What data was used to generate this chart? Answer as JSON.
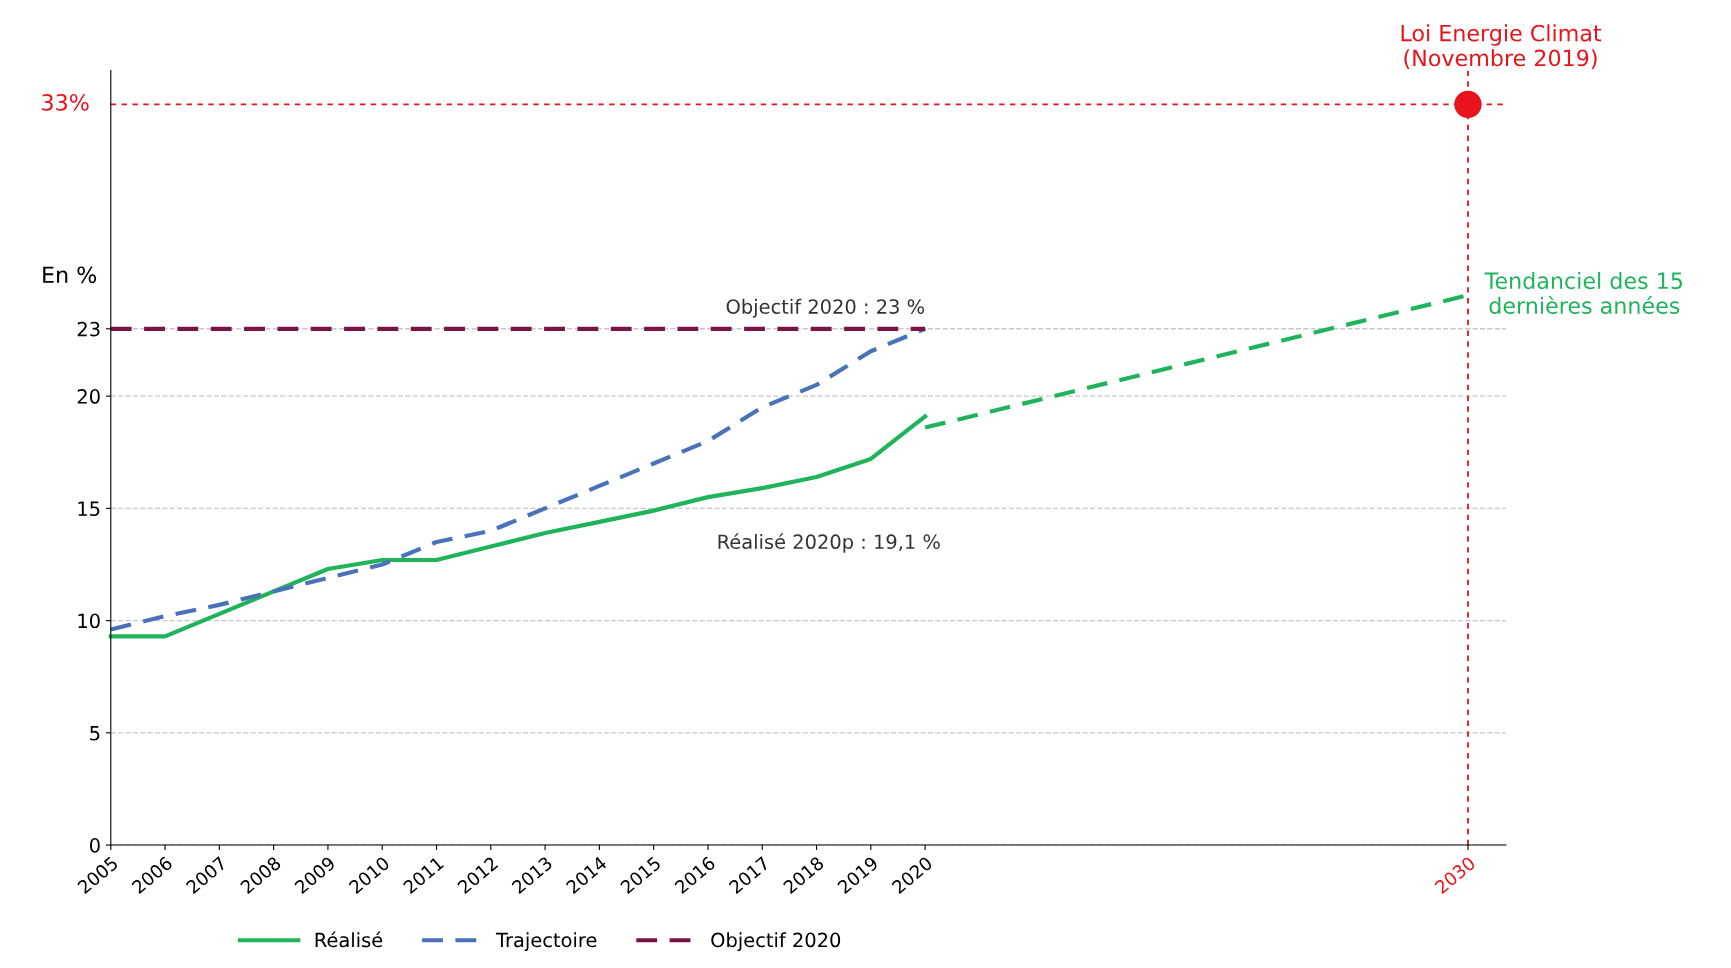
{
  "chart_data": {
    "type": "line",
    "ylabel": "En %",
    "x": [
      2005,
      2006,
      2007,
      2008,
      2009,
      2010,
      2011,
      2012,
      2013,
      2014,
      2015,
      2016,
      2017,
      2018,
      2019,
      2020,
      2030
    ],
    "series": [
      {
        "name": "Réalisé",
        "color": "#1fb35a",
        "line_style": "solid",
        "values": [
          9.3,
          9.3,
          10.3,
          11.3,
          12.3,
          12.7,
          12.7,
          13.3,
          13.9,
          14.4,
          14.9,
          15.5,
          15.9,
          16.4,
          17.2,
          19.1,
          null
        ]
      },
      {
        "name": "Trajectoire",
        "color": "#4a72b8",
        "line_style": "dashed",
        "values": [
          9.6,
          10.2,
          10.7,
          11.3,
          11.9,
          12.5,
          13.5,
          14.0,
          15.0,
          16.0,
          17.0,
          18.0,
          19.5,
          20.5,
          22.0,
          23.0,
          null
        ]
      },
      {
        "name": "Objectif 2020",
        "color": "#7a1446",
        "line_style": "dashed",
        "values": [
          23,
          23,
          23,
          23,
          23,
          23,
          23,
          23,
          23,
          23,
          23,
          23,
          23,
          23,
          23,
          23,
          null
        ]
      },
      {
        "type": "line",
        "color": "#1fb35a",
        "line_style": "dashed",
        "values": [
          null,
          null,
          null,
          null,
          null,
          null,
          null,
          null,
          null,
          null,
          null,
          null,
          null,
          null,
          null,
          18.6,
          24.5
        ]
      },
      {
        "type": "scatter",
        "color": "#e8141b",
        "marker": "circle",
        "values": [
          null,
          null,
          null,
          null,
          null,
          null,
          null,
          null,
          null,
          null,
          null,
          null,
          null,
          null,
          null,
          null,
          33
        ]
      }
    ],
    "xlim": [
      2005,
      2030.7
    ],
    "ylim": [
      0,
      34.5
    ],
    "xticks": [
      2005,
      2006,
      2007,
      2008,
      2009,
      2010,
      2011,
      2012,
      2013,
      2014,
      2015,
      2016,
      2017,
      2018,
      2019,
      2020,
      2030
    ],
    "yticks": [
      0,
      5,
      10,
      15,
      20,
      23
    ],
    "ref_lines": [
      {
        "axis": "y",
        "value": 33,
        "label": "33%",
        "color": "#e8141b",
        "line_style": "dotted"
      },
      {
        "axis": "x",
        "value": 2030,
        "label": "Loi Energie Climat\n(Novembre 2019)",
        "color": "#e8141b",
        "line_style": "dotted"
      }
    ],
    "annotations": [
      {
        "text": "Objectif 2020 : 23 %",
        "x": 2020,
        "y": 23
      },
      "Réalisé 2020p : 19,1 %",
      {
        "text": "Tendanciel des 15\ndernières années",
        "x": 2030,
        "y": 24.5
      }
    ],
    "grid": "y",
    "legend": "bottom"
  }
}
